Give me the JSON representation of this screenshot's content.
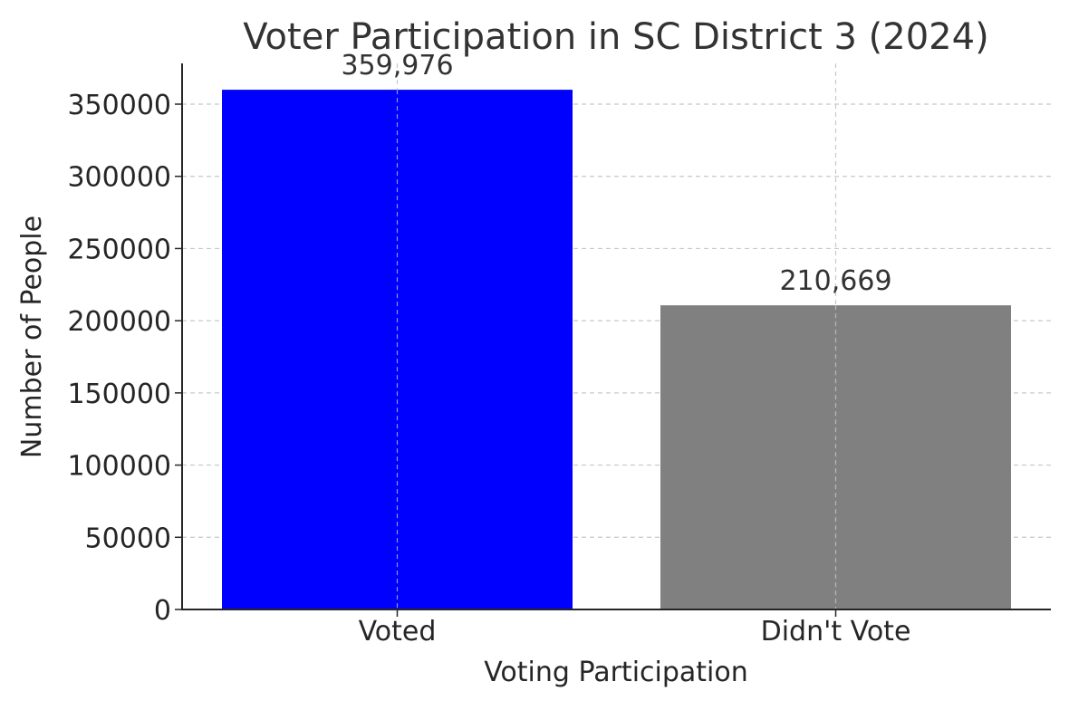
{
  "chart_data": {
    "type": "bar",
    "title": "Voter Participation in SC District 3 (2024)",
    "xlabel": "Voting Participation",
    "ylabel": "Number of People",
    "categories": [
      "Voted",
      "Didn't Vote"
    ],
    "values": [
      359976,
      210669
    ],
    "value_labels": [
      "359,976",
      "210,669"
    ],
    "bar_colors": [
      "#0000ff",
      "#808080"
    ],
    "yticks": [
      0,
      50000,
      100000,
      150000,
      200000,
      250000,
      300000,
      350000
    ],
    "ytick_labels": [
      "0",
      "50000",
      "100000",
      "150000",
      "200000",
      "250000",
      "300000",
      "350000"
    ],
    "ylim": [
      0,
      378000
    ],
    "grid": true,
    "grid_style": "dashed",
    "legend": "none"
  }
}
